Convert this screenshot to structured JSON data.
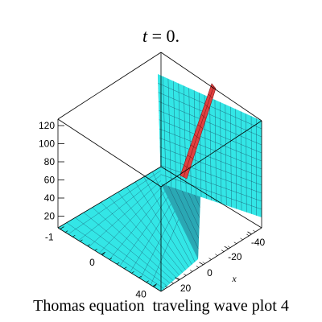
{
  "chart_data": {
    "type": "surface3d",
    "title_variable": "t",
    "title_value": "= 0.",
    "caption": "Thomas equation  traveling wave plot 4",
    "x_axis_label": "x",
    "z_ticks": [
      "120",
      "100",
      "80",
      "60",
      "40",
      "20"
    ],
    "z_range": [
      0,
      120
    ],
    "y_ticks": [
      "-1",
      "0",
      "40"
    ],
    "x_ticks": [
      "-40",
      "-20",
      "0",
      "20"
    ],
    "colors": {
      "surface": "#33e6e6",
      "surface_dark": "#2aa8b4",
      "mesh": "#1a4d66",
      "ridge": "#e04040",
      "ridge_dark": "#8a1a1a",
      "box": "#000000"
    }
  }
}
